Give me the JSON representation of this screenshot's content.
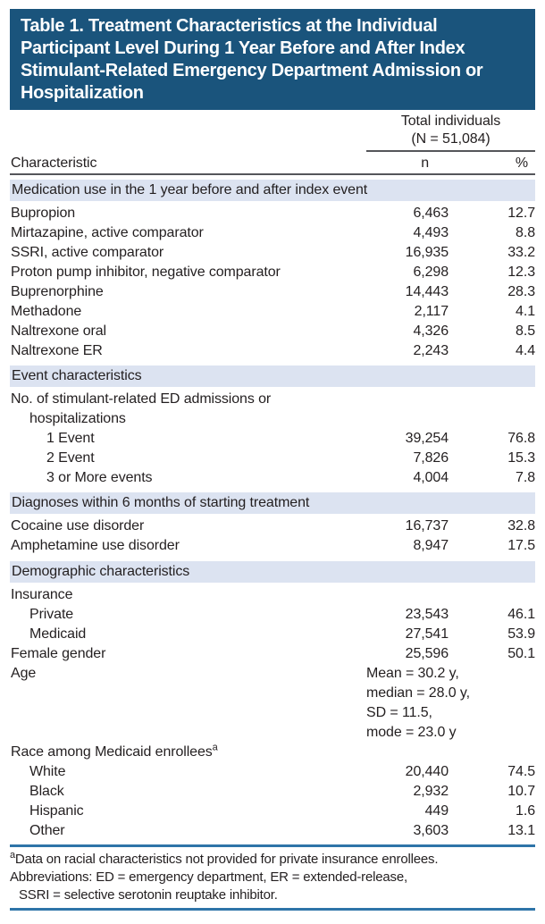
{
  "colors": {
    "header_bg": "#1A547C",
    "band_bg": "#DCE3F1",
    "rule_blue": "#2E74A8",
    "rule_gray": "#55565A",
    "text": "#231F20"
  },
  "table": {
    "title_lines": [
      "Table 1. Treatment Characteristics at the Individual",
      "Participant Level During 1 Year Before and After Index",
      "Stimulant-Related Emergency Department Admission or",
      "Hospitalization"
    ],
    "group_header": {
      "line1": "Total individuals",
      "line2": "(N = 51,084)"
    },
    "columns": {
      "characteristic": "Characteristic",
      "n": "n",
      "pct": "%"
    },
    "sections": [
      {
        "header": "Medication use in the 1 year before and after index event",
        "rows": [
          {
            "label": "Bupropion",
            "n": "6,463",
            "pct": "12.7"
          },
          {
            "label": "Mirtazapine, active comparator",
            "n": "4,493",
            "pct": "8.8"
          },
          {
            "label": "SSRI, active comparator",
            "n": "16,935",
            "pct": "33.2"
          },
          {
            "label": "Proton pump inhibitor, negative comparator",
            "n": "6,298",
            "pct": "12.3"
          },
          {
            "label": "Buprenorphine",
            "n": "14,443",
            "pct": "28.3"
          },
          {
            "label": "Methadone",
            "n": "2,117",
            "pct": "4.1"
          },
          {
            "label": "Naltrexone oral",
            "n": "4,326",
            "pct": "8.5"
          },
          {
            "label": "Naltrexone ER",
            "n": "2,243",
            "pct": "4.4"
          }
        ]
      },
      {
        "header": "Event characteristics",
        "rows": [
          {
            "label": "No. of stimulant-related ED admissions or"
          },
          {
            "label": "hospitalizations"
          },
          {
            "label": "1 Event",
            "n": "39,254",
            "pct": "76.8"
          },
          {
            "label": "2 Event",
            "n": "7,826",
            "pct": "15.3"
          },
          {
            "label": "3 or More events",
            "n": "4,004",
            "pct": "7.8"
          }
        ]
      },
      {
        "header": "Diagnoses within 6 months of starting treatment",
        "rows": [
          {
            "label": "Cocaine use disorder",
            "n": "16,737",
            "pct": "32.8"
          },
          {
            "label": "Amphetamine use disorder",
            "n": "8,947",
            "pct": "17.5"
          }
        ]
      },
      {
        "header": "Demographic characteristics",
        "rows": [
          {
            "label": "Insurance"
          },
          {
            "label": "Private",
            "n": "23,543",
            "pct": "46.1"
          },
          {
            "label": "Medicaid",
            "n": "27,541",
            "pct": "53.9"
          },
          {
            "label": "Female gender",
            "n": "25,596",
            "pct": "50.1"
          },
          {
            "label": "Age",
            "value_lines": [
              "Mean = 30.2 y,",
              "median = 28.0 y,",
              "SD = 11.5,",
              "mode = 23.0 y"
            ]
          },
          {
            "label": "Race among Medicaid enrollees",
            "sup": "a"
          },
          {
            "label": "White",
            "n": "20,440",
            "pct": "74.5"
          },
          {
            "label": "Black",
            "n": "2,932",
            "pct": "10.7"
          },
          {
            "label": "Hispanic",
            "n": "449",
            "pct": "1.6"
          },
          {
            "label": "Other",
            "n": "3,603",
            "pct": "13.1"
          }
        ]
      }
    ],
    "footnote": {
      "sup": "a",
      "lines": [
        "Data on racial characteristics not provided for private insurance enrollees.",
        "Abbreviations: ED = emergency department, ER = extended-release,",
        "SSRI = selective serotonin reuptake inhibitor."
      ]
    }
  }
}
